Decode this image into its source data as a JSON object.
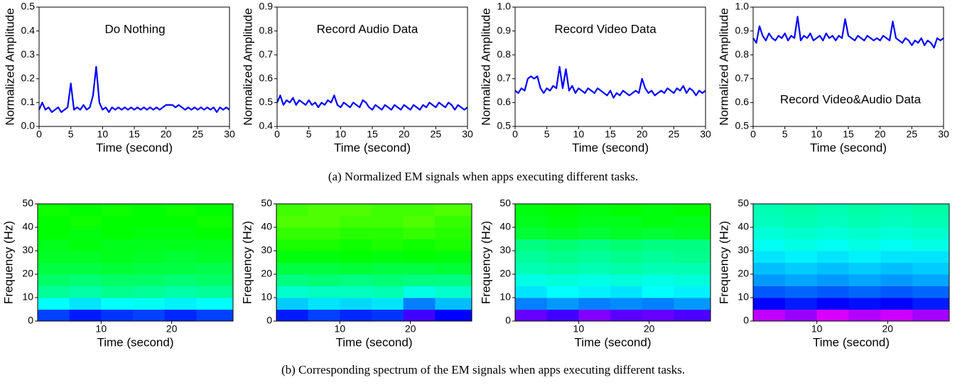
{
  "chart_data": [
    {
      "type": "line",
      "title": "Do Nothing",
      "xlabel": "Time (second)",
      "ylabel": "Normalized Amplitude",
      "color": "#0000ff",
      "x": [
        0,
        0.5,
        1,
        1.5,
        2,
        2.5,
        3,
        3.5,
        4,
        4.5,
        5,
        5.5,
        6,
        6.5,
        7,
        7.5,
        8,
        8.5,
        9,
        9.5,
        10,
        10.5,
        11,
        11.5,
        12,
        12.5,
        13,
        13.5,
        14,
        14.5,
        15,
        15.5,
        16,
        16.5,
        17,
        17.5,
        18,
        18.5,
        19,
        19.5,
        20,
        20.5,
        21,
        21.5,
        22,
        22.5,
        23,
        23.5,
        24,
        24.5,
        25,
        25.5,
        26,
        26.5,
        27,
        27.5,
        28,
        28.5,
        29,
        29.5,
        30
      ],
      "values": [
        0.07,
        0.1,
        0.07,
        0.08,
        0.06,
        0.07,
        0.08,
        0.06,
        0.07,
        0.08,
        0.18,
        0.07,
        0.08,
        0.07,
        0.09,
        0.07,
        0.08,
        0.13,
        0.25,
        0.1,
        0.07,
        0.08,
        0.06,
        0.08,
        0.07,
        0.08,
        0.07,
        0.08,
        0.07,
        0.08,
        0.07,
        0.08,
        0.07,
        0.08,
        0.07,
        0.08,
        0.07,
        0.08,
        0.07,
        0.08,
        0.09,
        0.09,
        0.09,
        0.08,
        0.09,
        0.08,
        0.07,
        0.08,
        0.07,
        0.08,
        0.07,
        0.08,
        0.07,
        0.08,
        0.07,
        0.08,
        0.06,
        0.08,
        0.07,
        0.08,
        0.07
      ],
      "xlim": [
        0,
        30
      ],
      "xticks": [
        0,
        5,
        10,
        15,
        20,
        25,
        30
      ],
      "ylim": [
        0,
        0.5
      ],
      "yticks": [
        {
          "value": 0,
          "label": "0.0"
        },
        0.1,
        0.2,
        0.3,
        0.4,
        0.5
      ]
    },
    {
      "type": "line",
      "title": "Record Audio Data",
      "xlabel": "Time (second)",
      "ylabel": "Normalized Amplitude",
      "color": "#0000ff",
      "x": [
        0,
        0.5,
        1,
        1.5,
        2,
        2.5,
        3,
        3.5,
        4,
        4.5,
        5,
        5.5,
        6,
        6.5,
        7,
        7.5,
        8,
        8.5,
        9,
        9.5,
        10,
        10.5,
        11,
        11.5,
        12,
        12.5,
        13,
        13.5,
        14,
        14.5,
        15,
        15.5,
        16,
        16.5,
        17,
        17.5,
        18,
        18.5,
        19,
        19.5,
        20,
        20.5,
        21,
        21.5,
        22,
        22.5,
        23,
        23.5,
        24,
        24.5,
        25,
        25.5,
        26,
        26.5,
        27,
        27.5,
        28,
        28.5,
        29,
        29.5,
        30
      ],
      "values": [
        0.5,
        0.53,
        0.49,
        0.51,
        0.5,
        0.52,
        0.49,
        0.51,
        0.5,
        0.49,
        0.51,
        0.49,
        0.5,
        0.48,
        0.5,
        0.49,
        0.51,
        0.5,
        0.53,
        0.49,
        0.48,
        0.5,
        0.49,
        0.48,
        0.5,
        0.49,
        0.48,
        0.51,
        0.5,
        0.48,
        0.47,
        0.49,
        0.48,
        0.47,
        0.49,
        0.48,
        0.47,
        0.49,
        0.48,
        0.47,
        0.49,
        0.48,
        0.47,
        0.49,
        0.48,
        0.47,
        0.49,
        0.48,
        0.5,
        0.49,
        0.48,
        0.5,
        0.49,
        0.48,
        0.5,
        0.49,
        0.47,
        0.49,
        0.48,
        0.47,
        0.48
      ],
      "xlim": [
        0,
        30
      ],
      "xticks": [
        0,
        5,
        10,
        15,
        20,
        25,
        30
      ],
      "ylim": [
        0.4,
        0.9
      ],
      "yticks": [
        0.4,
        0.5,
        0.6,
        0.7,
        0.8,
        0.9
      ]
    },
    {
      "type": "line",
      "title": "Record Video Data",
      "xlabel": "Time (second)",
      "ylabel": "Normalized Amplitude",
      "color": "#0000ff",
      "x": [
        0,
        0.5,
        1,
        1.5,
        2,
        2.5,
        3,
        3.5,
        4,
        4.5,
        5,
        5.5,
        6,
        6.5,
        7,
        7.5,
        8,
        8.5,
        9,
        9.5,
        10,
        10.5,
        11,
        11.5,
        12,
        12.5,
        13,
        13.5,
        14,
        14.5,
        15,
        15.5,
        16,
        16.5,
        17,
        17.5,
        18,
        18.5,
        19,
        19.5,
        20,
        20.5,
        21,
        21.5,
        22,
        22.5,
        23,
        23.5,
        24,
        24.5,
        25,
        25.5,
        26,
        26.5,
        27,
        27.5,
        28,
        28.5,
        29,
        29.5,
        30
      ],
      "values": [
        0.65,
        0.64,
        0.66,
        0.65,
        0.7,
        0.71,
        0.7,
        0.71,
        0.66,
        0.64,
        0.66,
        0.65,
        0.67,
        0.66,
        0.75,
        0.66,
        0.74,
        0.65,
        0.67,
        0.64,
        0.66,
        0.65,
        0.64,
        0.66,
        0.65,
        0.64,
        0.66,
        0.65,
        0.64,
        0.63,
        0.65,
        0.62,
        0.64,
        0.63,
        0.65,
        0.64,
        0.63,
        0.64,
        0.65,
        0.64,
        0.7,
        0.66,
        0.64,
        0.65,
        0.63,
        0.64,
        0.65,
        0.64,
        0.66,
        0.65,
        0.64,
        0.66,
        0.65,
        0.67,
        0.64,
        0.66,
        0.65,
        0.63,
        0.65,
        0.64,
        0.65
      ],
      "xlim": [
        0,
        30
      ],
      "xticks": [
        0,
        5,
        10,
        15,
        20,
        25,
        30
      ],
      "ylim": [
        0.5,
        1
      ],
      "yticks": [
        0.5,
        0.6,
        0.7,
        0.8,
        0.9,
        {
          "value": 1,
          "label": "1.0"
        }
      ]
    },
    {
      "type": "line",
      "title": "Record Video&Audio Data",
      "xlabel": "Time (second)",
      "ylabel": "Normalized Amplitude",
      "color": "#0000ff",
      "x": [
        0,
        0.5,
        1,
        1.5,
        2,
        2.5,
        3,
        3.5,
        4,
        4.5,
        5,
        5.5,
        6,
        6.5,
        7,
        7.5,
        8,
        8.5,
        9,
        9.5,
        10,
        10.5,
        11,
        11.5,
        12,
        12.5,
        13,
        13.5,
        14,
        14.5,
        15,
        15.5,
        16,
        16.5,
        17,
        17.5,
        18,
        18.5,
        19,
        19.5,
        20,
        20.5,
        21,
        21.5,
        22,
        22.5,
        23,
        23.5,
        24,
        24.5,
        25,
        25.5,
        26,
        26.5,
        27,
        27.5,
        28,
        28.5,
        29,
        29.5,
        30
      ],
      "values": [
        0.87,
        0.85,
        0.92,
        0.88,
        0.86,
        0.89,
        0.87,
        0.86,
        0.88,
        0.87,
        0.89,
        0.86,
        0.88,
        0.87,
        0.96,
        0.86,
        0.88,
        0.87,
        0.89,
        0.86,
        0.87,
        0.88,
        0.86,
        0.89,
        0.87,
        0.88,
        0.86,
        0.88,
        0.87,
        0.95,
        0.88,
        0.87,
        0.86,
        0.88,
        0.87,
        0.86,
        0.88,
        0.87,
        0.86,
        0.87,
        0.86,
        0.88,
        0.87,
        0.86,
        0.94,
        0.87,
        0.86,
        0.85,
        0.87,
        0.86,
        0.84,
        0.86,
        0.85,
        0.87,
        0.84,
        0.86,
        0.85,
        0.83,
        0.87,
        0.86,
        0.87
      ],
      "xlim": [
        0,
        30
      ],
      "xticks": [
        0,
        5,
        10,
        15,
        20,
        25,
        30
      ],
      "ylim": [
        0.5,
        1
      ],
      "yticks": [
        0.5,
        0.6,
        0.7,
        0.8,
        0.9,
        {
          "value": 1,
          "label": "1.0"
        }
      ]
    },
    {
      "type": "heatmap",
      "xlabel": "Time (second)",
      "ylabel": "Frequency (Hz)",
      "colormap": [
        "#ff00ff",
        "#0000ff",
        "#00ffff",
        "#00ff00",
        "#ffff00",
        "#ff0000"
      ],
      "zlim": [
        0,
        1
      ],
      "x_edges": [
        1,
        5.5,
        10,
        14.5,
        19,
        23.5,
        28.7
      ],
      "y_edges": [
        0,
        5,
        10,
        15,
        20,
        25,
        30,
        35,
        40,
        45,
        50
      ],
      "z": [
        [
          0.25,
          0.22,
          0.24,
          0.25,
          0.23,
          0.25
        ],
        [
          0.4,
          0.38,
          0.4,
          0.41,
          0.39,
          0.4
        ],
        [
          0.48,
          0.47,
          0.49,
          0.48,
          0.47,
          0.48
        ],
        [
          0.52,
          0.51,
          0.52,
          0.52,
          0.51,
          0.52
        ],
        [
          0.55,
          0.55,
          0.56,
          0.55,
          0.55,
          0.54
        ],
        [
          0.57,
          0.57,
          0.58,
          0.57,
          0.56,
          0.57
        ],
        [
          0.58,
          0.59,
          0.58,
          0.58,
          0.58,
          0.58
        ],
        [
          0.6,
          0.59,
          0.6,
          0.59,
          0.59,
          0.6
        ],
        [
          0.6,
          0.61,
          0.6,
          0.6,
          0.6,
          0.61
        ],
        [
          0.61,
          0.6,
          0.61,
          0.6,
          0.61,
          0.6
        ]
      ],
      "xlim": [
        1,
        28.7
      ],
      "xticks": [
        10,
        20
      ],
      "ylim": [
        0,
        50
      ],
      "yticks": [
        0,
        10,
        20,
        30,
        40,
        50
      ]
    },
    {
      "type": "heatmap",
      "xlabel": "Time (second)",
      "ylabel": "Frequency (Hz)",
      "colormap": [
        "#ff00ff",
        "#0000ff",
        "#00ffff",
        "#00ff00",
        "#ffff00",
        "#ff0000"
      ],
      "zlim": [
        0,
        1
      ],
      "x_edges": [
        1,
        5.5,
        10,
        14.5,
        19,
        23.5,
        28.7
      ],
      "y_edges": [
        0,
        5,
        10,
        15,
        20,
        25,
        30,
        35,
        40,
        45,
        50
      ],
      "z": [
        [
          0.22,
          0.25,
          0.23,
          0.24,
          0.15,
          0.2
        ],
        [
          0.36,
          0.38,
          0.37,
          0.38,
          0.3,
          0.35
        ],
        [
          0.44,
          0.45,
          0.45,
          0.46,
          0.42,
          0.44
        ],
        [
          0.5,
          0.51,
          0.5,
          0.51,
          0.5,
          0.5
        ],
        [
          0.55,
          0.55,
          0.56,
          0.55,
          0.55,
          0.56
        ],
        [
          0.59,
          0.59,
          0.6,
          0.59,
          0.6,
          0.59
        ],
        [
          0.62,
          0.62,
          0.61,
          0.62,
          0.61,
          0.62
        ],
        [
          0.64,
          0.64,
          0.63,
          0.63,
          0.64,
          0.63
        ],
        [
          0.66,
          0.66,
          0.65,
          0.65,
          0.66,
          0.64
        ],
        [
          0.65,
          0.66,
          0.66,
          0.65,
          0.65,
          0.66
        ]
      ],
      "xlim": [
        1,
        28.7
      ],
      "xticks": [
        10,
        20
      ],
      "ylim": [
        0,
        50
      ],
      "yticks": [
        0,
        10,
        20,
        30,
        40,
        50
      ]
    },
    {
      "type": "heatmap",
      "xlabel": "Time (second)",
      "ylabel": "Frequency (Hz)",
      "colormap": [
        "#ff00ff",
        "#0000ff",
        "#00ffff",
        "#00ff00",
        "#ffff00",
        "#ff0000"
      ],
      "zlim": [
        0,
        1
      ],
      "x_edges": [
        1,
        5.5,
        10,
        14.5,
        19,
        23.5,
        28.7
      ],
      "y_edges": [
        0,
        5,
        10,
        15,
        20,
        25,
        30,
        35,
        40,
        45,
        50
      ],
      "z": [
        [
          0.12,
          0.15,
          0.1,
          0.13,
          0.12,
          0.14
        ],
        [
          0.3,
          0.32,
          0.3,
          0.31,
          0.3,
          0.32
        ],
        [
          0.38,
          0.4,
          0.39,
          0.38,
          0.4,
          0.39
        ],
        [
          0.42,
          0.43,
          0.42,
          0.43,
          0.42,
          0.43
        ],
        [
          0.46,
          0.47,
          0.46,
          0.47,
          0.46,
          0.46
        ],
        [
          0.48,
          0.49,
          0.48,
          0.49,
          0.48,
          0.49
        ],
        [
          0.5,
          0.51,
          0.5,
          0.51,
          0.5,
          0.5
        ],
        [
          0.56,
          0.57,
          0.56,
          0.57,
          0.56,
          0.57
        ],
        [
          0.58,
          0.59,
          0.58,
          0.58,
          0.59,
          0.58
        ],
        [
          0.59,
          0.6,
          0.59,
          0.6,
          0.59,
          0.6
        ]
      ],
      "xlim": [
        1,
        28.7
      ],
      "xticks": [
        10,
        20
      ],
      "ylim": [
        0,
        50
      ],
      "yticks": [
        0,
        10,
        20,
        30,
        40,
        50
      ]
    },
    {
      "type": "heatmap",
      "xlabel": "Time (second)",
      "ylabel": "Frequency (Hz)",
      "colormap": [
        "#ff00ff",
        "#0000ff",
        "#00ffff",
        "#00ff00",
        "#ffff00",
        "#ff0000"
      ],
      "zlim": [
        0,
        1
      ],
      "x_edges": [
        1,
        5.5,
        10,
        14.5,
        19,
        23.5,
        28.7
      ],
      "y_edges": [
        0,
        5,
        10,
        15,
        20,
        25,
        30,
        35,
        40,
        45,
        50
      ],
      "z": [
        [
          0.05,
          0.08,
          0.03,
          0.06,
          0.04,
          0.07
        ],
        [
          0.2,
          0.22,
          0.2,
          0.21,
          0.2,
          0.22
        ],
        [
          0.27,
          0.28,
          0.27,
          0.28,
          0.27,
          0.28
        ],
        [
          0.32,
          0.33,
          0.32,
          0.33,
          0.32,
          0.33
        ],
        [
          0.35,
          0.36,
          0.35,
          0.36,
          0.35,
          0.36
        ],
        [
          0.38,
          0.39,
          0.38,
          0.39,
          0.38,
          0.38
        ],
        [
          0.41,
          0.42,
          0.41,
          0.42,
          0.41,
          0.42
        ],
        [
          0.43,
          0.44,
          0.43,
          0.44,
          0.43,
          0.44
        ],
        [
          0.45,
          0.46,
          0.45,
          0.46,
          0.45,
          0.46
        ],
        [
          0.46,
          0.47,
          0.46,
          0.47,
          0.46,
          0.47
        ]
      ],
      "xlim": [
        1,
        28.7
      ],
      "xticks": [
        10,
        20
      ],
      "ylim": [
        0,
        50
      ],
      "yticks": [
        0,
        10,
        20,
        30,
        40,
        50
      ]
    }
  ],
  "captions": [
    "(a) Normalized EM signals when apps executing different tasks.",
    "(b) Corresponding spectrum of the EM signals when apps executing different tasks."
  ]
}
